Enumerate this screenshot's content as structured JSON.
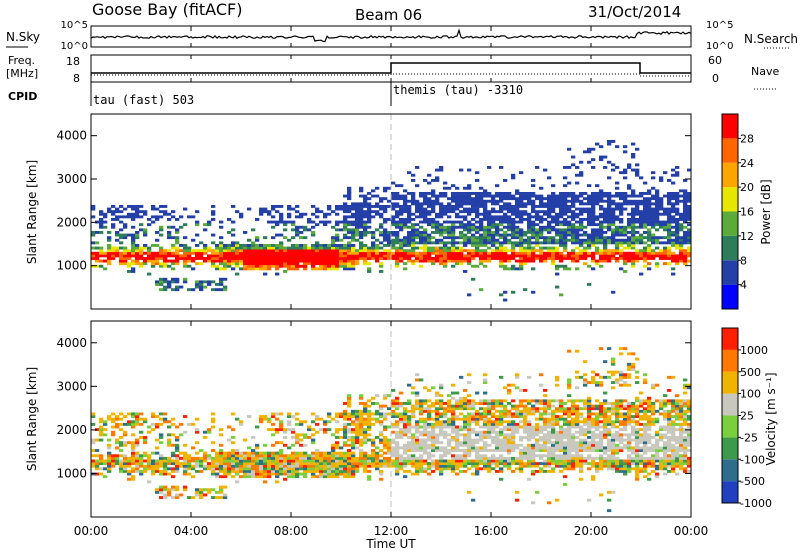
{
  "header": {
    "site": "Goose Bay (fitACF)",
    "beam": "Beam 06",
    "date": "31/Oct/2014"
  },
  "top_panels": {
    "nsky_label": "N.Sky",
    "nsky_ticks": [
      "10^5",
      "10^0"
    ],
    "nsearch_label": "N.Search",
    "nsearch_ticks": [
      "10^5",
      "10^0"
    ],
    "freq_label_line1": "Freq.",
    "freq_label_line2": "[MHz]",
    "freq_ticks": [
      "18",
      "8"
    ],
    "nave_label": "Nave",
    "nave_ticks": [
      "60",
      "0"
    ],
    "cpid_label": "CPID",
    "cpid_segments": [
      {
        "label": "tau (fast) 503",
        "start_hour": 0
      },
      {
        "label": "themis (tau) -3310",
        "start_hour": 12
      }
    ]
  },
  "chart_data": [
    {
      "type": "heatmap",
      "name": "power",
      "ylabel": "Slant Range [km]",
      "ylim": [
        0,
        4500
      ],
      "yticks": [
        "4000",
        "3000",
        "2000",
        "1000"
      ],
      "xlim": [
        0,
        24
      ],
      "colorbar_label": "Power [dB]",
      "colorbar_ticks": [
        "28",
        "24",
        "20",
        "16",
        "12",
        "8",
        "4"
      ],
      "colors": [
        "#0000ff",
        "#2440a8",
        "#2e7d5a",
        "#5aaa3c",
        "#e6e600",
        "#ffa500",
        "#ff6600",
        "#ff0000"
      ]
    },
    {
      "type": "heatmap",
      "name": "velocity",
      "ylabel": "Slant Range [km]",
      "ylim": [
        0,
        4500
      ],
      "yticks": [
        "4000",
        "3000",
        "2000",
        "1000"
      ],
      "xlim": [
        0,
        24
      ],
      "colorbar_label": "Velocity [m s⁻¹]",
      "colorbar_ticks": [
        "1000",
        "500",
        "100",
        "25",
        "-25",
        "-100",
        "-500",
        "-1000"
      ],
      "colors": [
        "#2040c0",
        "#2e6e8c",
        "#3c9a4a",
        "#7ad03c",
        "#c8c8be",
        "#f0b400",
        "#ff7800",
        "#ff2000"
      ]
    }
  ],
  "x_axis": {
    "ticks": [
      "00:00",
      "04:00",
      "08:00",
      "12:00",
      "16:00",
      "20:00",
      "00:00"
    ],
    "label": "Time UT"
  }
}
